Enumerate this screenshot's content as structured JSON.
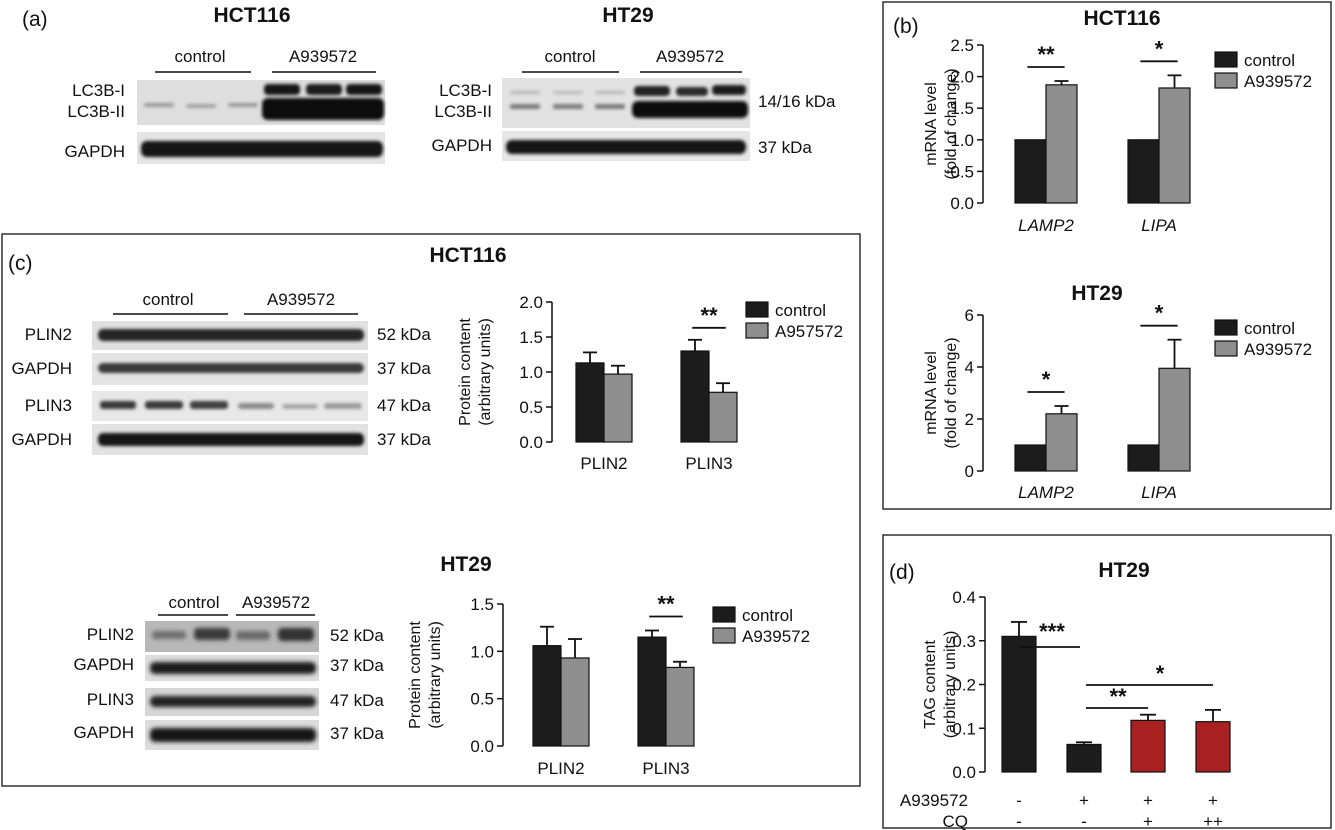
{
  "panels": {
    "a": {
      "label": "(a)",
      "blots": [
        {
          "title": "HCT116",
          "groups": [
            "control",
            "A939572"
          ],
          "rows": [
            {
              "labels": [
                "LC3B-I",
                "LC3B-II"
              ],
              "kda": ""
            },
            {
              "labels": [
                "GAPDH"
              ],
              "kda": ""
            }
          ]
        },
        {
          "title": "HT29",
          "groups": [
            "control",
            "A939572"
          ],
          "rows": [
            {
              "labels": [
                "LC3B-I",
                "LC3B-II"
              ],
              "kda": "14/16 kDa"
            },
            {
              "labels": [
                "GAPDH"
              ],
              "kda": "37 kDa"
            }
          ]
        }
      ]
    },
    "b": {
      "label": "(b)",
      "charts": [
        {
          "title": "HCT116",
          "ylabel": [
            "mRNA level",
            "(fold of change)"
          ],
          "ylim": [
            0,
            2.5
          ],
          "ticks": [
            "0.0",
            "0.5",
            "1.0",
            "1.5",
            "2.0",
            "2.5"
          ],
          "categories": [
            "LAMP2",
            "LIPA"
          ],
          "legend": [
            "control",
            "A939572"
          ],
          "sig": [
            "**",
            "*"
          ]
        },
        {
          "title": "HT29",
          "ylabel": [
            "mRNA  level",
            "(fold of change)"
          ],
          "ylim": [
            0,
            6
          ],
          "ticks": [
            "0",
            "2",
            "4",
            "6"
          ],
          "categories": [
            "LAMP2",
            "LIPA"
          ],
          "legend": [
            "control",
            "A939572"
          ],
          "sig": [
            "*",
            "*"
          ]
        }
      ]
    },
    "c": {
      "label": "(c)",
      "sections": [
        {
          "title": "HCT116",
          "groups": [
            "control",
            "A939572"
          ],
          "rows": [
            {
              "label": "PLIN2",
              "kda": "52 kDa"
            },
            {
              "label": "GAPDH",
              "kda": "37 kDa"
            },
            {
              "label": "PLIN3",
              "kda": "47 kDa"
            },
            {
              "label": "GAPDH",
              "kda": "37 kDa"
            }
          ],
          "chart": {
            "ylabel": [
              "Protein content",
              "(arbitrary units)"
            ],
            "ylim": [
              0,
              2.0
            ],
            "ticks": [
              "0.0",
              "0.5",
              "1.0",
              "1.5",
              "2.0"
            ],
            "categories": [
              "PLIN2",
              "PLIN3"
            ],
            "legend": [
              "control",
              "A957572"
            ],
            "sig": [
              "",
              "**"
            ]
          }
        },
        {
          "title": "HT29",
          "groups": [
            "control",
            "A939572"
          ],
          "rows": [
            {
              "label": "PLIN2",
              "kda": "52 kDa"
            },
            {
              "label": "GAPDH",
              "kda": "37 kDa"
            },
            {
              "label": "PLIN3",
              "kda": "47 kDa"
            },
            {
              "label": "GAPDH",
              "kda": "37 kDa"
            }
          ],
          "chart": {
            "ylabel": [
              "Protein content",
              "(arbitrary units)"
            ],
            "ylim": [
              0,
              1.5
            ],
            "ticks": [
              "0.0",
              "0.5",
              "1.0",
              "1.5"
            ],
            "categories": [
              "PLIN2",
              "PLIN3"
            ],
            "legend": [
              "control",
              "A939572"
            ],
            "sig": [
              "",
              "**"
            ]
          }
        }
      ]
    },
    "d": {
      "label": "(d)",
      "title": "HT29",
      "ylabel": [
        "TAG content",
        "(arbitrary units)"
      ],
      "ylim": [
        0,
        0.4
      ],
      "ticks": [
        "0.0",
        "0.1",
        "0.2",
        "0.3",
        "0.4"
      ],
      "row_labels": [
        "A939572",
        "CQ"
      ],
      "conditions": [
        {
          "a939572": "-",
          "cq": "-"
        },
        {
          "a939572": "+",
          "cq": "-"
        },
        {
          "a939572": "+",
          "cq": "+"
        },
        {
          "a939572": "+",
          "cq": "++"
        }
      ],
      "sig": [
        "***",
        "**",
        "*"
      ]
    }
  },
  "colors": {
    "control": "#1c1c1c",
    "treated": "#8e8e8e",
    "cq": "#a82020"
  },
  "chart_data": [
    {
      "type": "bar",
      "title": "HCT116",
      "ylabel": "mRNA level (fold of change)",
      "ylim": [
        0,
        2.5
      ],
      "categories": [
        "LAMP2",
        "LIPA"
      ],
      "series": [
        {
          "name": "control",
          "values": [
            1.0,
            1.0
          ],
          "errors": [
            0,
            0
          ]
        },
        {
          "name": "A939572",
          "values": [
            1.87,
            1.82
          ],
          "errors": [
            0.06,
            0.2
          ]
        }
      ],
      "legend": "top-right",
      "annotations": [
        "**",
        "*"
      ]
    },
    {
      "type": "bar",
      "title": "HT29",
      "ylabel": "mRNA level (fold of change)",
      "ylim": [
        0,
        6
      ],
      "categories": [
        "LAMP2",
        "LIPA"
      ],
      "series": [
        {
          "name": "control",
          "values": [
            1.0,
            1.0
          ],
          "errors": [
            0,
            0
          ]
        },
        {
          "name": "A939572",
          "values": [
            2.2,
            3.95
          ],
          "errors": [
            0.3,
            1.1
          ]
        }
      ],
      "legend": "top-right",
      "annotations": [
        "*",
        "*"
      ]
    },
    {
      "type": "bar",
      "title": "HCT116",
      "ylabel": "Protein content (arbitrary units)",
      "ylim": [
        0,
        2.0
      ],
      "categories": [
        "PLIN2",
        "PLIN3"
      ],
      "series": [
        {
          "name": "control",
          "values": [
            1.13,
            1.3
          ],
          "errors": [
            0.15,
            0.16
          ]
        },
        {
          "name": "A957572",
          "values": [
            0.97,
            0.71
          ],
          "errors": [
            0.12,
            0.13
          ]
        }
      ],
      "legend": "top-right",
      "annotations": [
        "",
        "**"
      ]
    },
    {
      "type": "bar",
      "title": "HT29",
      "ylabel": "Protein content (arbitrary units)",
      "ylim": [
        0,
        1.5
      ],
      "categories": [
        "PLIN2",
        "PLIN3"
      ],
      "series": [
        {
          "name": "control",
          "values": [
            1.06,
            1.15
          ],
          "errors": [
            0.2,
            0.07
          ]
        },
        {
          "name": "A939572",
          "values": [
            0.93,
            0.83
          ],
          "errors": [
            0.2,
            0.06
          ]
        }
      ],
      "legend": "top-right",
      "annotations": [
        "",
        "**"
      ]
    },
    {
      "type": "bar",
      "title": "HT29",
      "ylabel": "TAG content (arbitrary units)",
      "ylim": [
        0,
        0.4
      ],
      "categories": [
        "-/-",
        "+/-",
        "+/+",
        "+/++"
      ],
      "values": [
        0.31,
        0.063,
        0.118,
        0.115
      ],
      "errors": [
        0.033,
        0.005,
        0.013,
        0.027
      ],
      "annotations": [
        "***",
        "**",
        "*"
      ]
    }
  ]
}
